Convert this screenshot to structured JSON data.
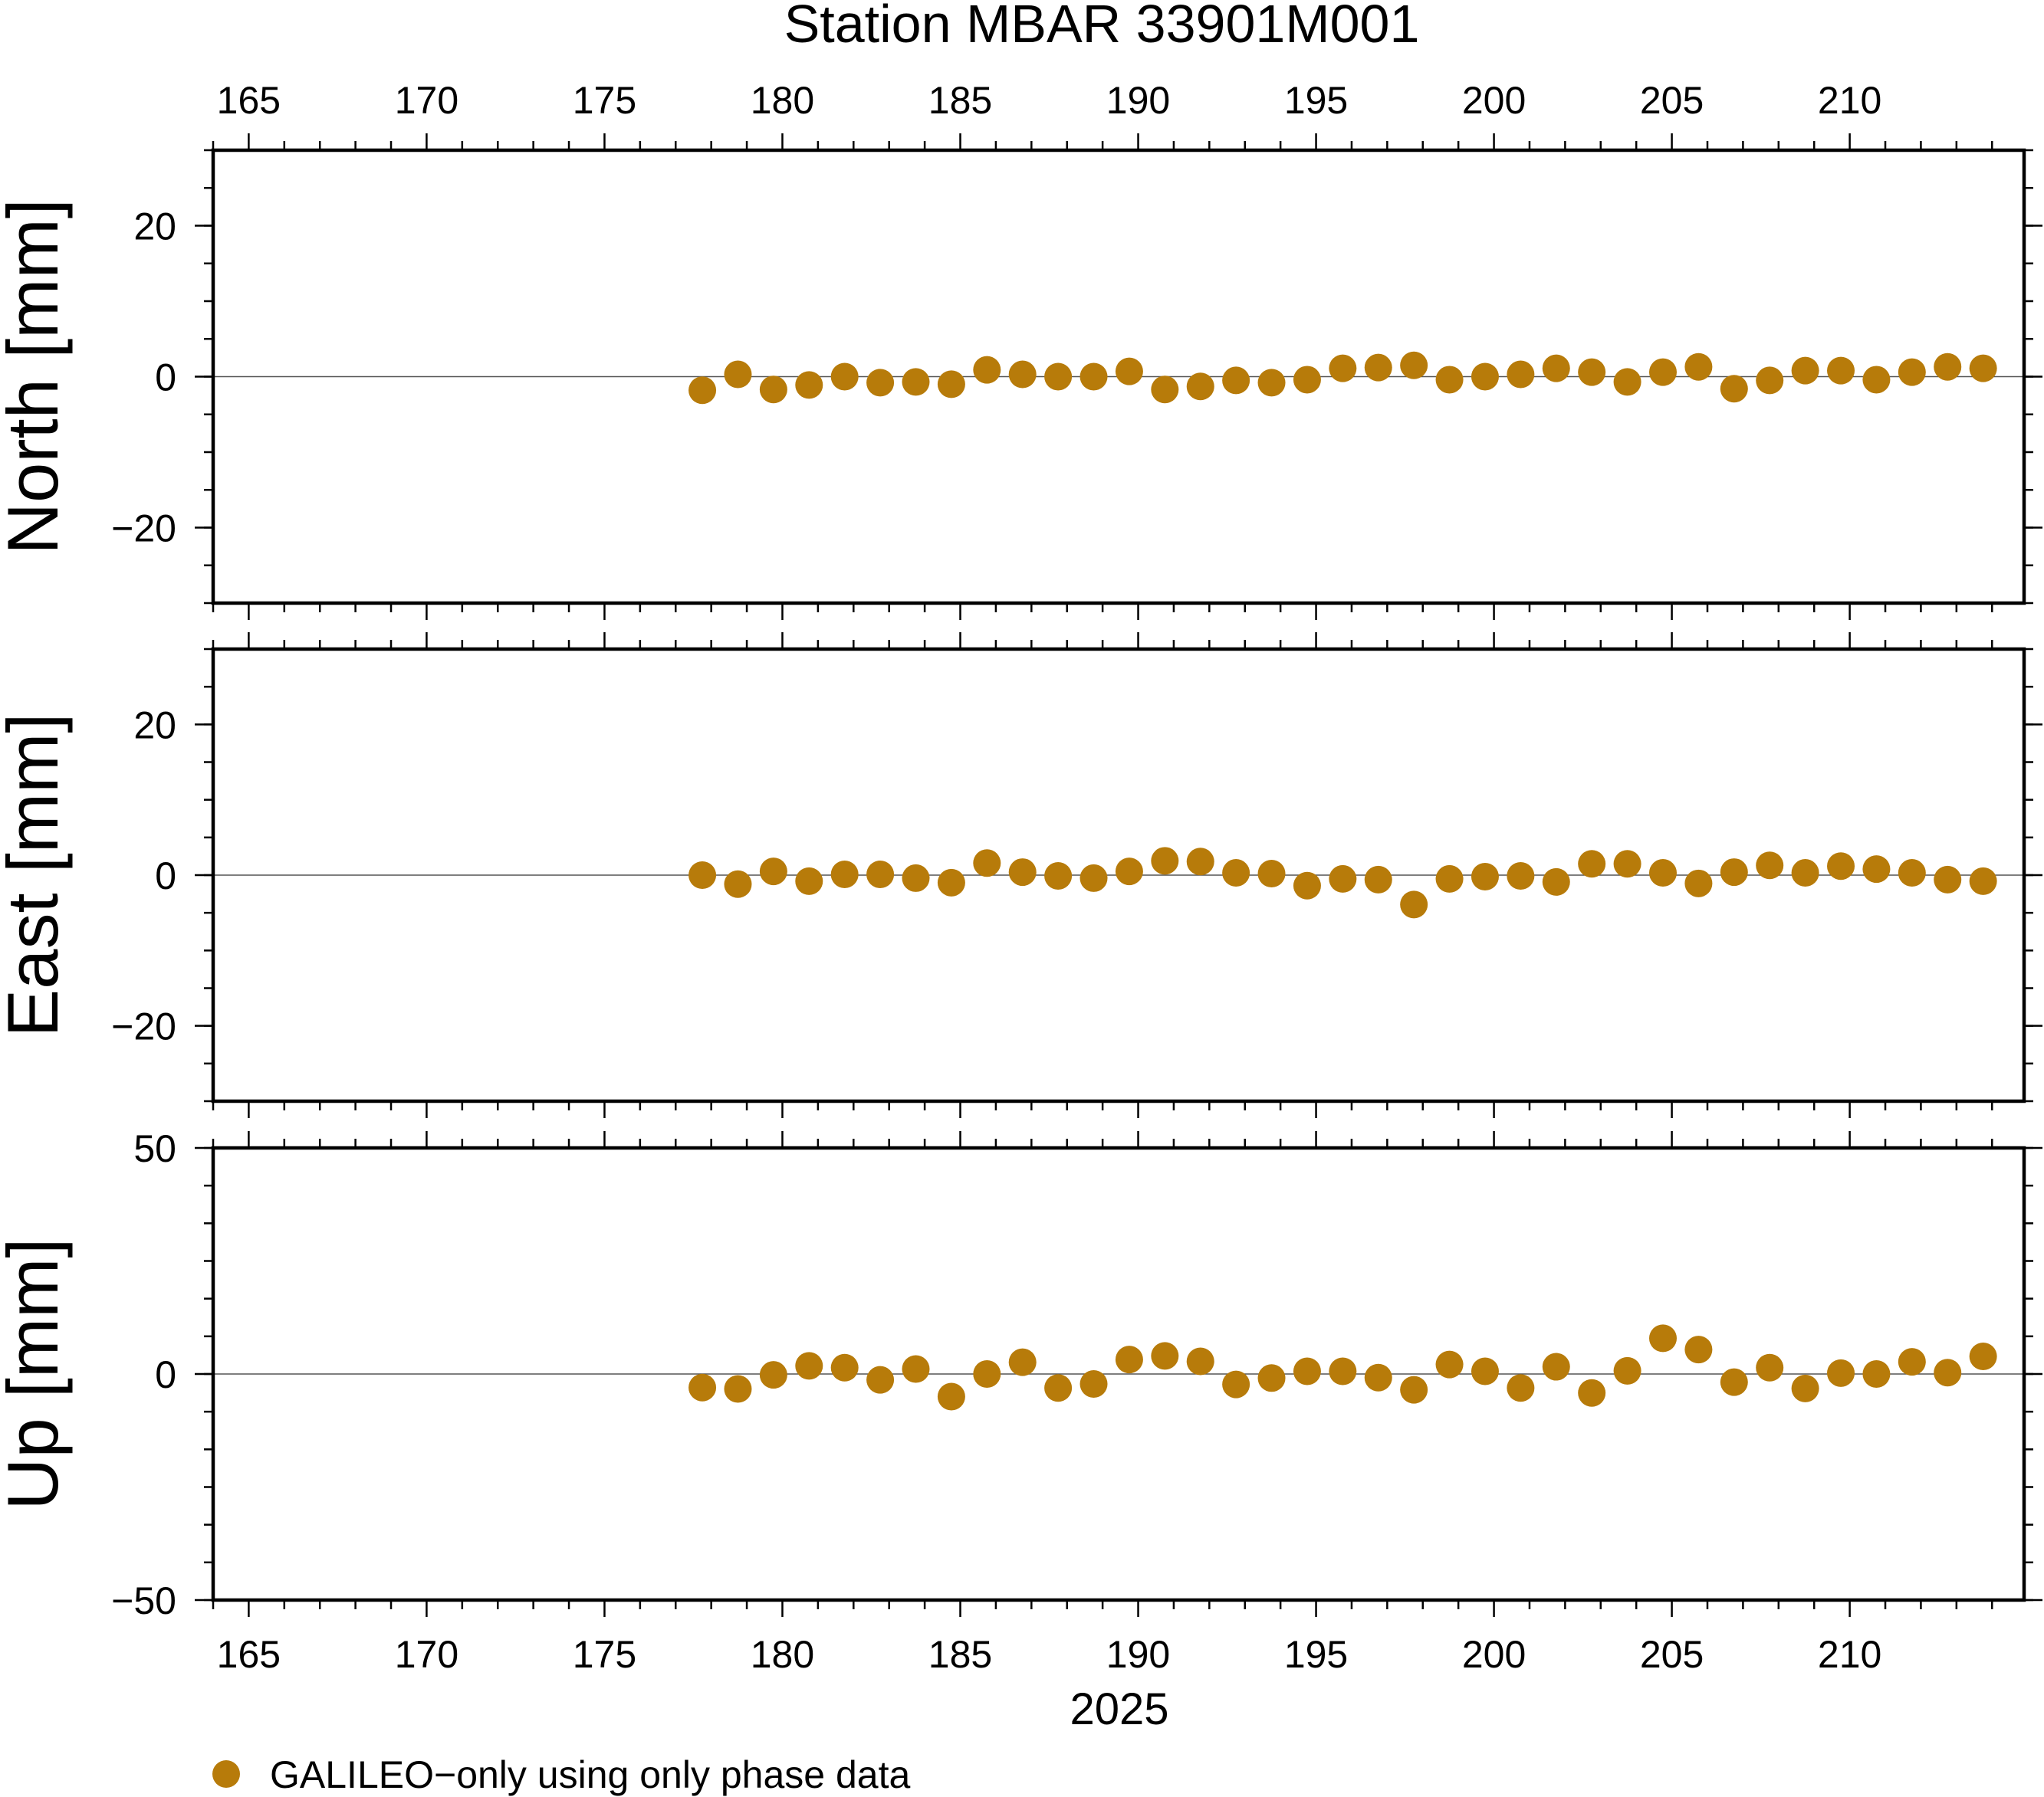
{
  "chart_data": {
    "type": "scatter",
    "title": "Station MBAR 33901M001",
    "xlabel": "2025",
    "x_ticks": [
      165,
      170,
      175,
      180,
      185,
      190,
      195,
      200,
      205,
      210
    ],
    "xlim": [
      164,
      214.9
    ],
    "grid": false,
    "legend_position": "bottom-left",
    "legend": "GALILEO−only using only phase data",
    "marker_color": "#b77b0a",
    "x": [
      177.75,
      178.75,
      179.75,
      180.75,
      181.75,
      182.75,
      183.75,
      184.75,
      185.75,
      186.75,
      187.75,
      188.75,
      189.75,
      190.75,
      191.75,
      192.75,
      193.75,
      194.75,
      195.75,
      196.75,
      197.75,
      198.75,
      199.75,
      200.75,
      201.75,
      202.75,
      203.75,
      204.75,
      205.75,
      206.75,
      207.75,
      208.75,
      209.75,
      210.75,
      211.75,
      212.75,
      213.75
    ],
    "panels": [
      {
        "name": "north",
        "ylabel": "North [mm]",
        "ylim": [
          -30,
          30
        ],
        "y_ticks": [
          20,
          0,
          -20
        ],
        "y_tick_labels": [
          "20",
          "0",
          "−20"
        ],
        "values": [
          -1.8,
          0.3,
          -1.7,
          -1.1,
          0.0,
          -0.8,
          -0.7,
          -1.0,
          0.9,
          0.3,
          0.0,
          0.0,
          0.7,
          -1.7,
          -1.3,
          -0.5,
          -0.8,
          -0.4,
          1.1,
          1.2,
          1.5,
          -0.4,
          0.0,
          0.3,
          1.1,
          0.6,
          -0.7,
          0.6,
          1.3,
          -1.6,
          -0.5,
          0.8,
          0.8,
          -0.4,
          0.6,
          1.3,
          1.1
        ]
      },
      {
        "name": "east",
        "ylabel": "East [mm]",
        "ylim": [
          -30,
          30
        ],
        "y_ticks": [
          20,
          0,
          -20
        ],
        "y_tick_labels": [
          "20",
          "0",
          "−20"
        ],
        "values": [
          0.0,
          -1.2,
          0.5,
          -0.8,
          0.1,
          0.1,
          -0.4,
          -1.0,
          1.6,
          0.4,
          -0.1,
          -0.4,
          0.5,
          1.9,
          1.8,
          0.3,
          0.2,
          -1.4,
          -0.5,
          -0.6,
          -3.9,
          -0.5,
          -0.2,
          -0.1,
          -0.9,
          1.5,
          1.5,
          0.3,
          -1.1,
          0.4,
          1.3,
          0.3,
          1.2,
          0.8,
          0.3,
          -0.6,
          -0.8
        ]
      },
      {
        "name": "up",
        "ylabel": "Up [mm]",
        "ylim": [
          -50,
          50
        ],
        "y_ticks": [
          50,
          0,
          -50
        ],
        "y_tick_labels": [
          "50",
          "0",
          "−50"
        ],
        "values": [
          -3.0,
          -3.3,
          -0.2,
          1.8,
          1.4,
          -1.3,
          1.1,
          -5.0,
          0.0,
          2.6,
          -3.1,
          -2.2,
          3.2,
          4.0,
          2.8,
          -2.3,
          -0.9,
          0.6,
          0.6,
          -0.8,
          -3.5,
          2.1,
          0.6,
          -3.1,
          1.6,
          -4.2,
          0.7,
          7.9,
          5.4,
          -1.8,
          1.4,
          -3.2,
          0.2,
          0.0,
          2.7,
          0.3,
          3.9
        ]
      }
    ]
  }
}
